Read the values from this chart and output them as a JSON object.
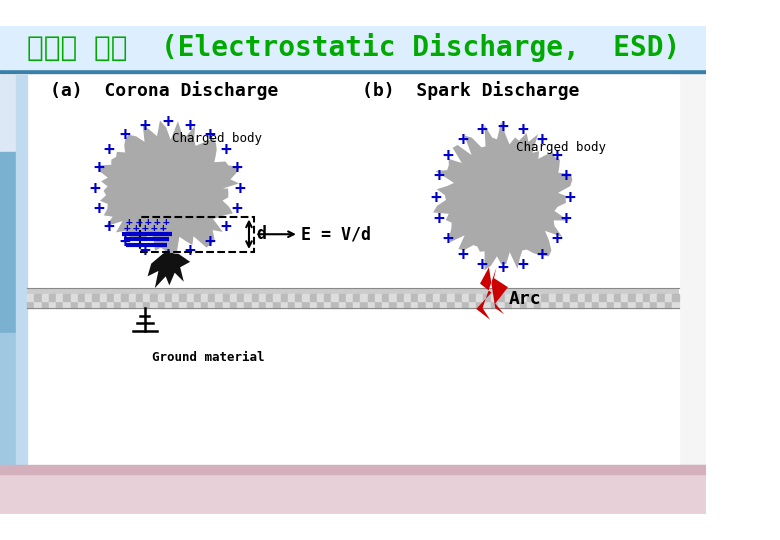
{
  "title": "정전기 방전  (Electrostatic Discharge,  ESD)",
  "title_color": "#00aa00",
  "title_fontsize": 20,
  "bg_color": "#ffffff",
  "label_a": "(a)  Corona Discharge",
  "label_b": "(b)  Spark Discharge",
  "charged_body": "Charged body",
  "arc_label": "Arc",
  "d_label": "d",
  "e_label": "E = V/d",
  "ground_label": "Ground material",
  "plus_color": "#0000cc",
  "blob_color": "#aaaaaa",
  "ground_color": "#cccccc",
  "arc_color": "#cc0000",
  "black_color": "#111111",
  "dashed_color": "#333333",
  "header_top_color": "#6baed6",
  "header_mid_color": "#bdd7e7",
  "side_bar_color": "#5a9fd4",
  "bottom_bar_color": "#e8d0d8"
}
